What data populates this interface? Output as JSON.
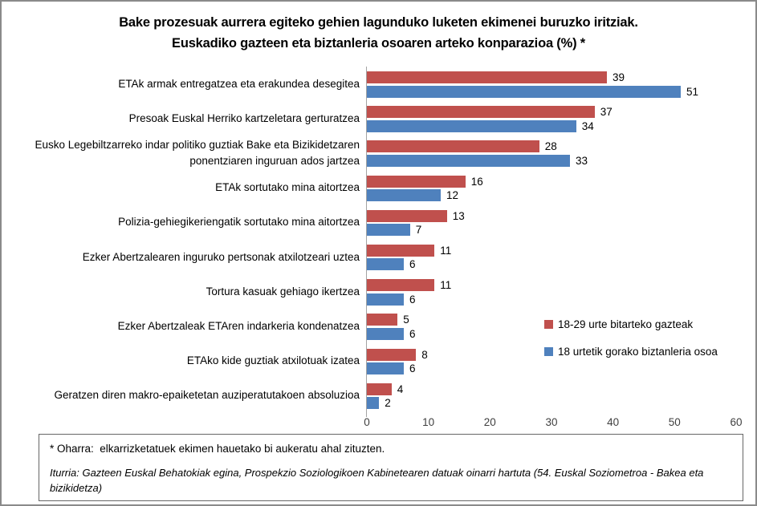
{
  "title": {
    "line1": "Bake prozesuak aurrera egiteko gehien lagunduko luketen ekimenei buruzko iritziak.",
    "line2": "Euskadiko gazteen eta biztanleria osoaren arteko konparazioa (%) *"
  },
  "chart_data": {
    "type": "bar",
    "orientation": "horizontal",
    "categories": [
      "ETAk armak entregatzea eta erakundea desegitea",
      "Presoak Euskal Herriko kartzeletara gerturatzea",
      "Eusko Legebiltzarreko indar politiko guztiak Bake eta Bizikidetzaren ponentziaren inguruan ados jartzea",
      "ETAk sortutako mina aitortzea",
      "Polizia-gehiegikeriengatik sortutako mina aitortzea",
      "Ezker Abertzalearen inguruko pertsonak atxilotzeari uztea",
      "Tortura kasuak gehiago ikertzea",
      "Ezker Abertzaleak ETAren indarkeria kondenatzea",
      "ETAko kide guztiak atxilotuak izatea",
      "Geratzen diren makro-epaiketetan auziperatutakoen absoluzioa"
    ],
    "series": [
      {
        "name": "18-29 urte bitarteko gazteak",
        "color": "#C0504D",
        "values": [
          39,
          37,
          28,
          16,
          13,
          11,
          11,
          5,
          8,
          4
        ]
      },
      {
        "name": "18 urtetik gorako biztanleria osoa",
        "color": "#4F81BD",
        "values": [
          51,
          34,
          33,
          12,
          7,
          6,
          6,
          6,
          6,
          2
        ]
      }
    ],
    "xlim": [
      0,
      60
    ],
    "xticks": [
      0,
      10,
      20,
      30,
      40,
      50,
      60
    ],
    "grid": false,
    "data_labels": true,
    "legend_position": "right-middle"
  },
  "footnote": {
    "note": "* Oharra:  elkarrizketatuek ekimen hauetako bi aukeratu ahal zituzten.",
    "source": "Iturria: Gazteen Euskal Behatokiak egina, Prospekzio Soziologikoen Kabinetearen datuak oinarri hartuta (54. Euskal Soziometroa - Bakea eta bizikidetza)"
  },
  "colors": {
    "series_red": "#C0504D",
    "series_blue": "#4F81BD",
    "axis_line": "#a3a3a3",
    "frame_border": "#8a8a8a",
    "footnote_border": "#666666"
  }
}
